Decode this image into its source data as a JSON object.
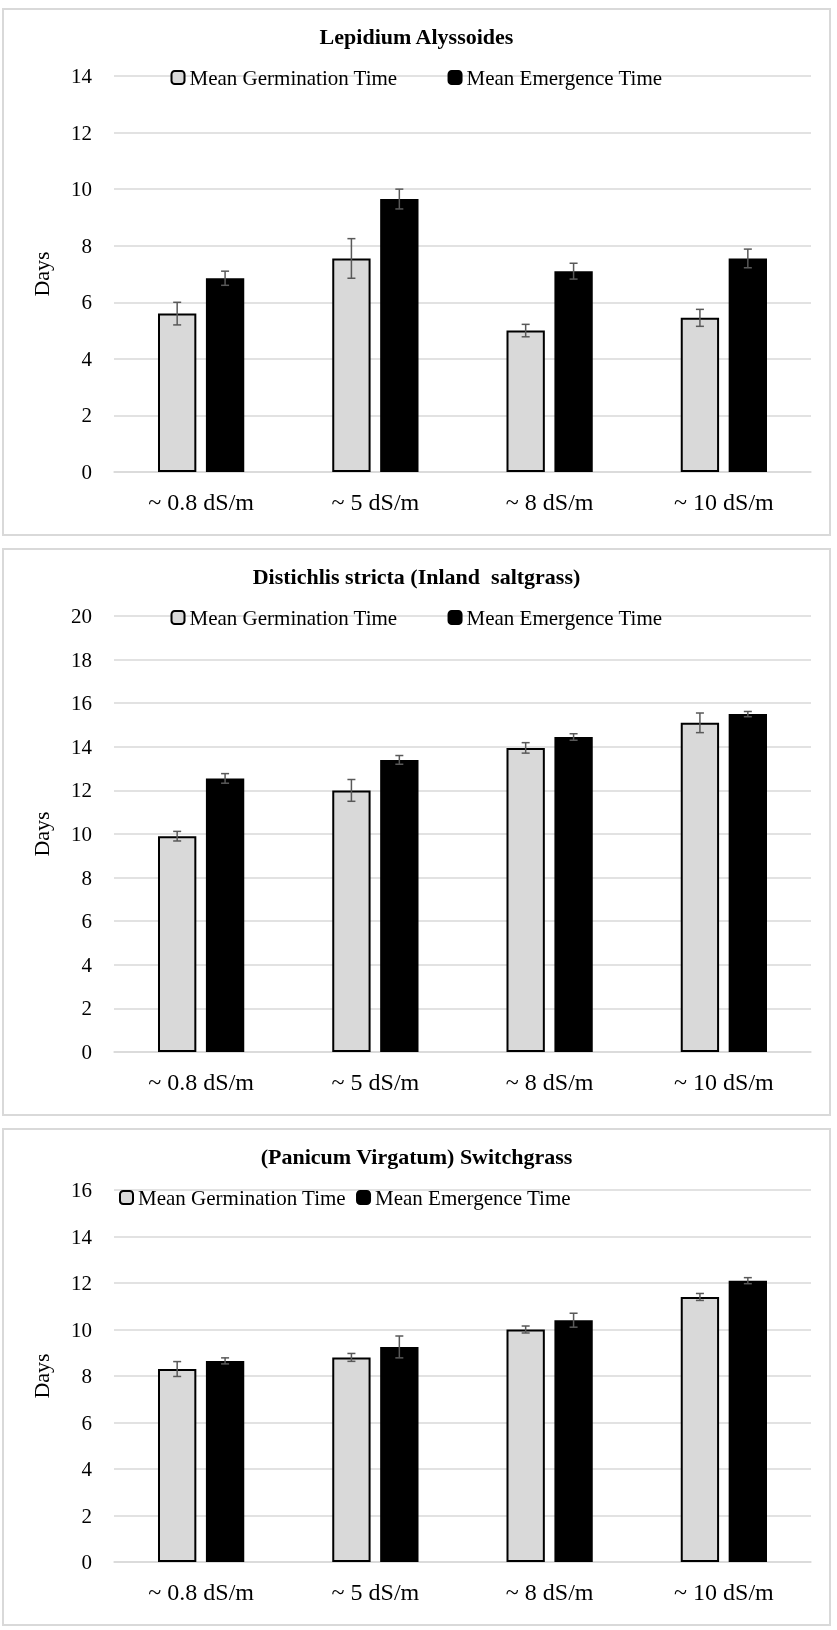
{
  "chart_data": [
    {
      "type": "bar",
      "title": "Lepidium Alyssoides",
      "ylabel": "Days",
      "categories": [
        "~ 0.8 dS/m",
        "~ 5 dS/m",
        "~ 8 dS/m",
        "~ 10 dS/m"
      ],
      "series": [
        {
          "name": "Mean Germination Time",
          "color": "#d9d9d9",
          "values": [
            5.6,
            7.55,
            5.0,
            5.45
          ],
          "errors": [
            0.4,
            0.7,
            0.22,
            0.3
          ]
        },
        {
          "name": "Mean Emergence Time",
          "color": "#000000",
          "values": [
            6.85,
            9.65,
            7.1,
            7.55
          ],
          "errors": [
            0.25,
            0.35,
            0.28,
            0.33
          ]
        }
      ],
      "ylim": [
        0,
        14
      ],
      "yticks": [
        0,
        2,
        4,
        6,
        8,
        10,
        12,
        14
      ],
      "grid": "y",
      "legend": "top"
    },
    {
      "type": "bar",
      "title": "Distichlis stricta (Inland  saltgrass)",
      "ylabel": "Days",
      "categories": [
        "~ 0.8 dS/m",
        "~ 5 dS/m",
        "~ 8 dS/m",
        "~ 10 dS/m"
      ],
      "series": [
        {
          "name": "Mean Germination Time",
          "color": "#d9d9d9",
          "values": [
            9.9,
            12.0,
            13.95,
            15.1
          ],
          "errors": [
            0.22,
            0.5,
            0.24,
            0.45
          ]
        },
        {
          "name": "Mean Emergence Time",
          "color": "#000000",
          "values": [
            12.55,
            13.4,
            14.45,
            15.5
          ],
          "errors": [
            0.22,
            0.2,
            0.15,
            0.12
          ]
        }
      ],
      "ylim": [
        0,
        20
      ],
      "yticks": [
        0,
        2,
        4,
        6,
        8,
        10,
        12,
        14,
        16,
        18,
        20
      ],
      "grid": "y",
      "legend": "top"
    },
    {
      "type": "bar",
      "title": "(Panicum Virgatum) Switchgrass",
      "ylabel": "Days",
      "categories": [
        "~ 0.8 dS/m",
        "~ 5 dS/m",
        "~ 8 dS/m",
        "~ 10 dS/m"
      ],
      "series": [
        {
          "name": "Mean Germination Time",
          "color": "#d9d9d9",
          "values": [
            8.3,
            8.8,
            10.0,
            11.4
          ],
          "errors": [
            0.32,
            0.17,
            0.15,
            0.15
          ]
        },
        {
          "name": "Mean Emergence Time",
          "color": "#000000",
          "values": [
            8.65,
            9.25,
            10.4,
            12.1
          ],
          "errors": [
            0.13,
            0.47,
            0.3,
            0.13
          ]
        }
      ],
      "ylim": [
        0,
        16
      ],
      "yticks": [
        0,
        2,
        4,
        6,
        8,
        10,
        12,
        14,
        16
      ],
      "grid": "y",
      "legend": "top left"
    }
  ]
}
